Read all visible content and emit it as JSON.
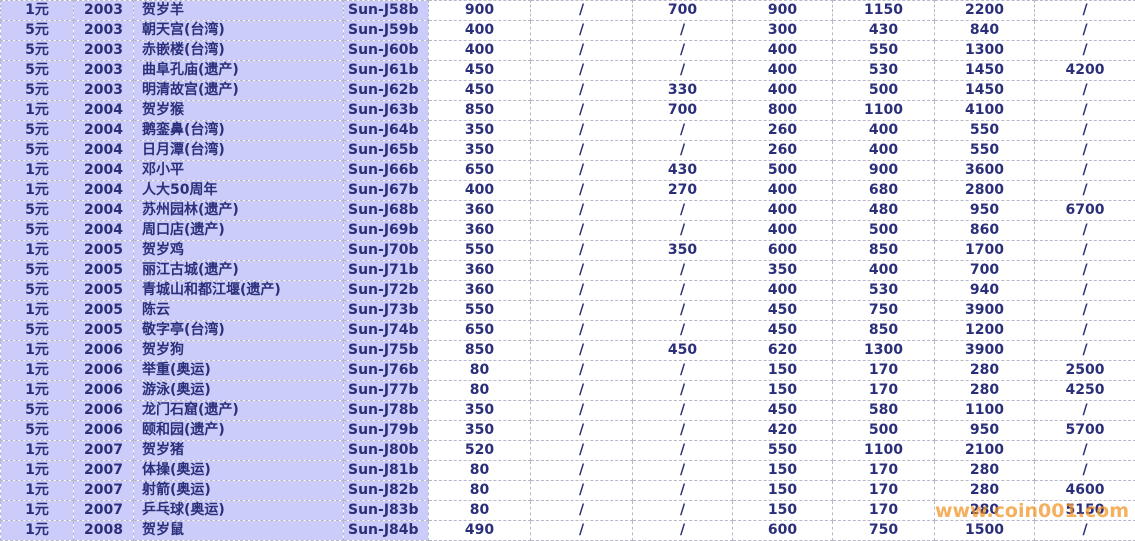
{
  "table": {
    "rows": [
      [
        "1元",
        "2003",
        "贺岁羊",
        "Sun-J58b",
        "900",
        "/",
        "700",
        "900",
        "1150",
        "2200",
        "/"
      ],
      [
        "5元",
        "2003",
        "朝天宫(台湾)",
        "Sun-J59b",
        "400",
        "/",
        "/",
        "300",
        "430",
        "840",
        "/"
      ],
      [
        "5元",
        "2003",
        "赤嵌楼(台湾)",
        "Sun-J60b",
        "400",
        "/",
        "/",
        "400",
        "550",
        "1300",
        "/"
      ],
      [
        "5元",
        "2003",
        "曲阜孔庙(遗产)",
        "Sun-J61b",
        "450",
        "/",
        "/",
        "400",
        "530",
        "1450",
        "4200"
      ],
      [
        "5元",
        "2003",
        "明清故宫(遗产)",
        "Sun-J62b",
        "450",
        "/",
        "330",
        "400",
        "500",
        "1450",
        "/"
      ],
      [
        "1元",
        "2004",
        "贺岁猴",
        "Sun-J63b",
        "850",
        "/",
        "700",
        "800",
        "1100",
        "4100",
        "/"
      ],
      [
        "5元",
        "2004",
        "鹅銮鼻(台湾)",
        "Sun-J64b",
        "350",
        "/",
        "/",
        "260",
        "400",
        "550",
        "/"
      ],
      [
        "5元",
        "2004",
        "日月潭(台湾)",
        "Sun-J65b",
        "350",
        "/",
        "/",
        "260",
        "400",
        "550",
        "/"
      ],
      [
        "1元",
        "2004",
        "邓小平",
        "Sun-J66b",
        "650",
        "/",
        "430",
        "500",
        "900",
        "3600",
        "/"
      ],
      [
        "1元",
        "2004",
        "人大50周年",
        "Sun-J67b",
        "400",
        "/",
        "270",
        "400",
        "680",
        "2800",
        "/"
      ],
      [
        "5元",
        "2004",
        "苏州园林(遗产)",
        "Sun-J68b",
        "360",
        "/",
        "/",
        "400",
        "480",
        "950",
        "6700"
      ],
      [
        "5元",
        "2004",
        "周口店(遗产)",
        "Sun-J69b",
        "360",
        "/",
        "/",
        "400",
        "500",
        "860",
        "/"
      ],
      [
        "1元",
        "2005",
        "贺岁鸡",
        "Sun-J70b",
        "550",
        "/",
        "350",
        "600",
        "850",
        "1700",
        "/"
      ],
      [
        "5元",
        "2005",
        "丽江古城(遗产)",
        "Sun-J71b",
        "360",
        "/",
        "/",
        "350",
        "400",
        "700",
        "/"
      ],
      [
        "5元",
        "2005",
        "青城山和都江堰(遗产)",
        "Sun-J72b",
        "360",
        "/",
        "/",
        "400",
        "530",
        "940",
        "/"
      ],
      [
        "1元",
        "2005",
        "陈云",
        "Sun-J73b",
        "550",
        "/",
        "/",
        "450",
        "750",
        "3900",
        "/"
      ],
      [
        "5元",
        "2005",
        "敬字亭(台湾)",
        "Sun-J74b",
        "650",
        "/",
        "/",
        "450",
        "850",
        "1200",
        "/"
      ],
      [
        "1元",
        "2006",
        "贺岁狗",
        "Sun-J75b",
        "850",
        "/",
        "450",
        "620",
        "1300",
        "3900",
        "/"
      ],
      [
        "1元",
        "2006",
        "举重(奥运)",
        "Sun-J76b",
        "80",
        "/",
        "/",
        "150",
        "170",
        "280",
        "2500"
      ],
      [
        "1元",
        "2006",
        "游泳(奥运)",
        "Sun-J77b",
        "80",
        "/",
        "/",
        "150",
        "170",
        "280",
        "4250"
      ],
      [
        "5元",
        "2006",
        "龙门石窟(遗产)",
        "Sun-J78b",
        "350",
        "/",
        "/",
        "450",
        "580",
        "1100",
        "/"
      ],
      [
        "5元",
        "2006",
        "颐和园(遗产)",
        "Sun-J79b",
        "350",
        "/",
        "/",
        "420",
        "500",
        "950",
        "5700"
      ],
      [
        "1元",
        "2007",
        "贺岁猪",
        "Sun-J80b",
        "520",
        "/",
        "/",
        "550",
        "1100",
        "2100",
        "/"
      ],
      [
        "1元",
        "2007",
        "体操(奥运)",
        "Sun-J81b",
        "80",
        "/",
        "/",
        "150",
        "170",
        "280",
        "/"
      ],
      [
        "1元",
        "2007",
        "射箭(奥运)",
        "Sun-J82b",
        "80",
        "/",
        "/",
        "150",
        "170",
        "280",
        "4600"
      ],
      [
        "1元",
        "2007",
        "乒乓球(奥运)",
        "Sun-J83b",
        "80",
        "/",
        "/",
        "150",
        "170",
        "280",
        "5150"
      ],
      [
        "1元",
        "2008",
        "贺岁鼠",
        "Sun-J84b",
        "490",
        "/",
        "/",
        "600",
        "750",
        "1500",
        "/"
      ]
    ]
  },
  "watermark": "www.coin001.com"
}
